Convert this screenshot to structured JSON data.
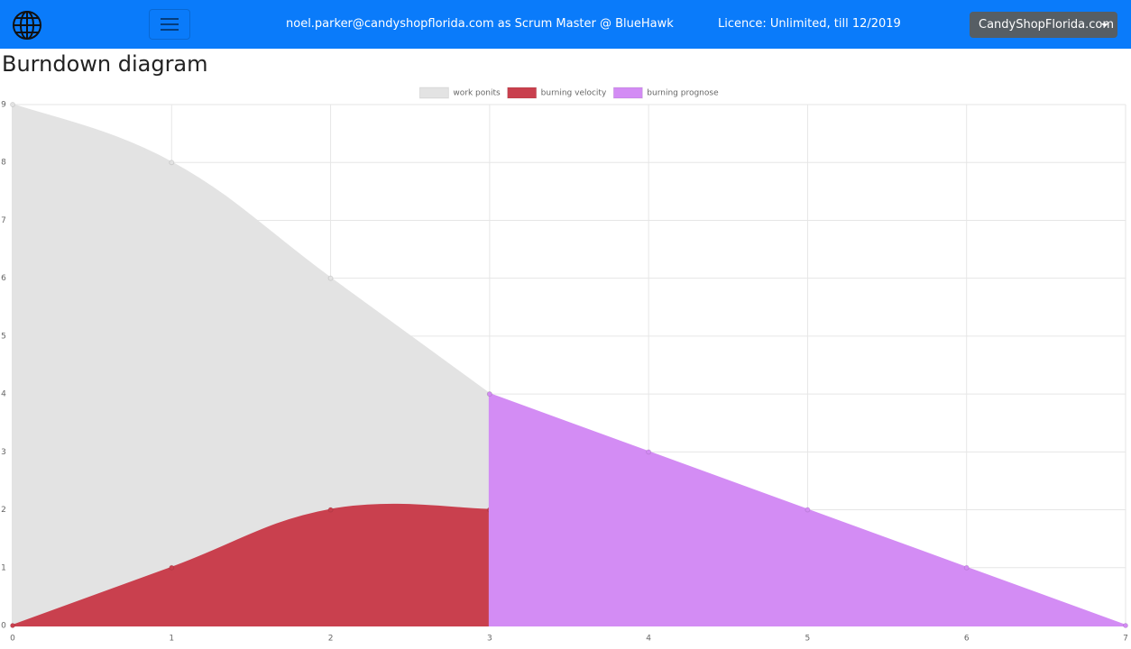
{
  "header": {
    "user": "noel.parker@candyshopflorida.com as Scrum Master @ BlueHawk",
    "licence": "Licence: Unlimited, till 12/2019",
    "company": "CandyShopFlorida.com"
  },
  "page_title": "Burndown diagram",
  "chart_data": {
    "type": "area",
    "x": [
      0,
      1,
      2,
      3,
      4,
      5,
      6,
      7
    ],
    "series": [
      {
        "name": "work ponits",
        "color": "#e3e3e3",
        "values": [
          9,
          8,
          6,
          4,
          null,
          null,
          null,
          null
        ]
      },
      {
        "name": "burning velocity",
        "color": "#c9404e",
        "values": [
          0,
          1,
          2,
          2,
          null,
          null,
          null,
          null
        ]
      },
      {
        "name": "burning prognose",
        "color": "#d38cf4",
        "values": [
          null,
          null,
          null,
          4,
          3,
          2,
          1,
          0
        ]
      }
    ],
    "xlim": [
      0,
      7
    ],
    "xticks": [
      0,
      1,
      2,
      3,
      4,
      5,
      6,
      7
    ],
    "ylim": [
      0,
      9
    ],
    "yticks": [
      0,
      1,
      2,
      3,
      4,
      5,
      6,
      7,
      8,
      9
    ],
    "grid": true,
    "legend": "top"
  }
}
